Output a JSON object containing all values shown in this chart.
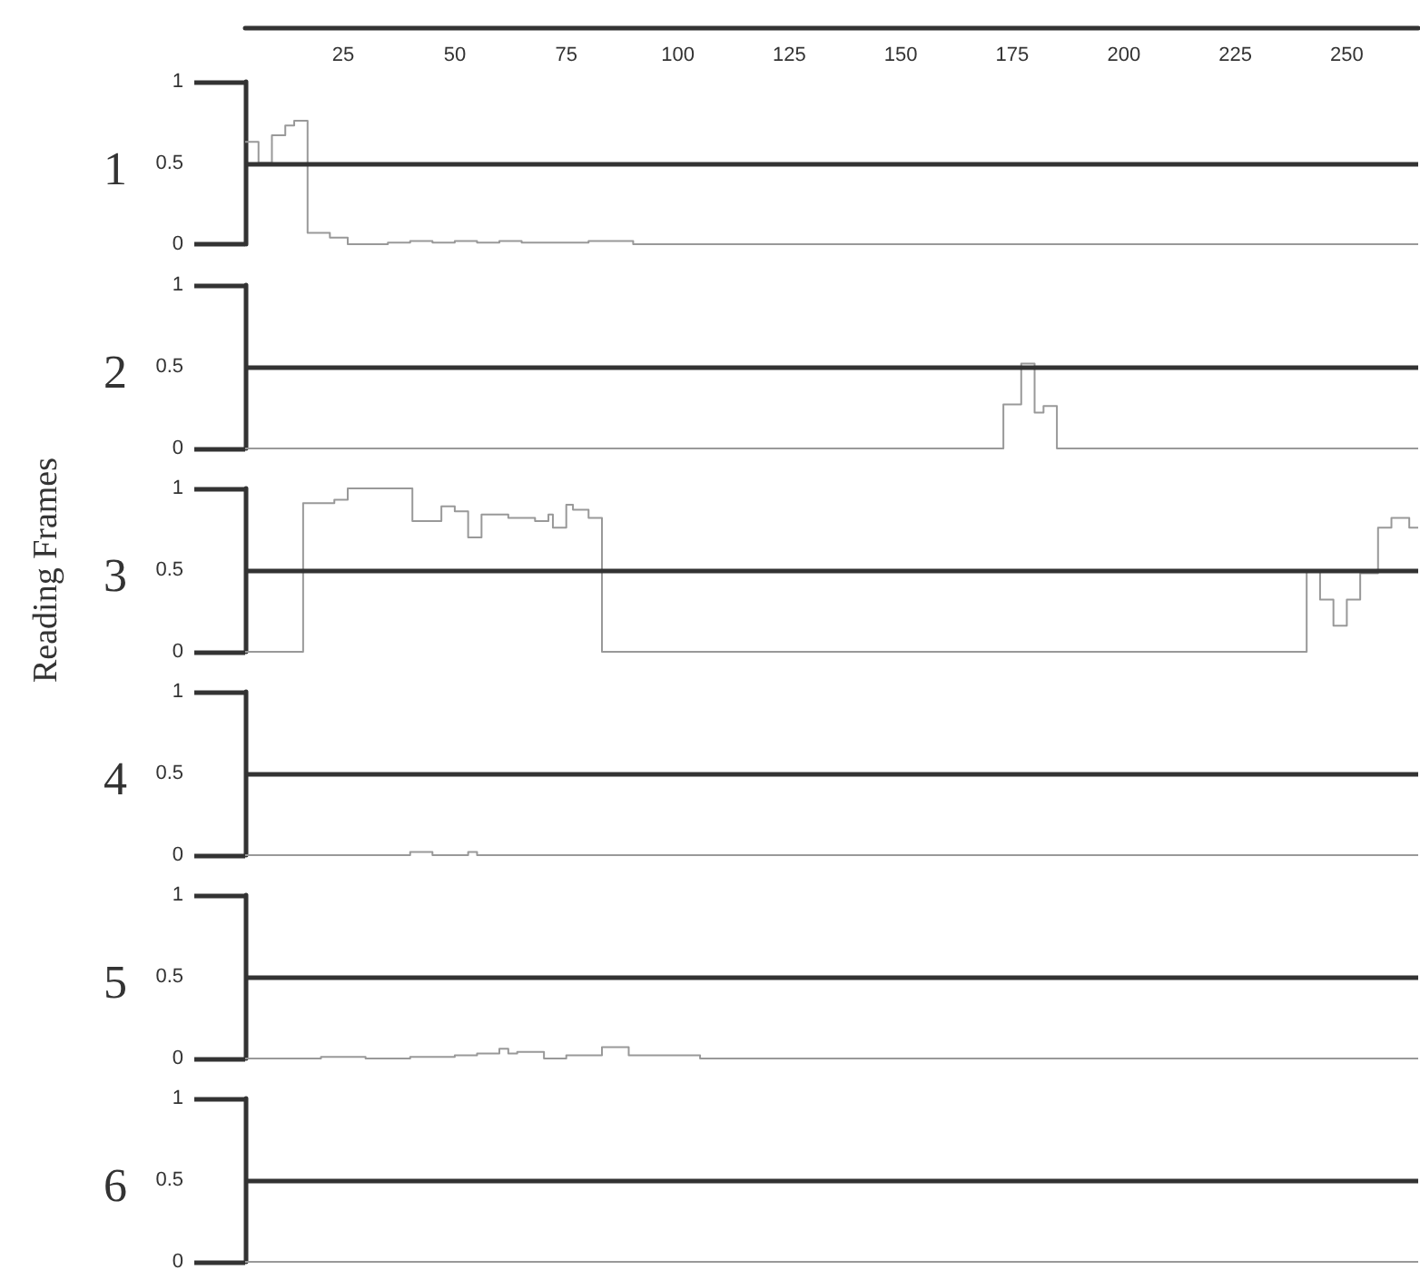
{
  "chart_data": [
    {
      "type": "step",
      "title": "1",
      "xlim": [
        3,
        266
      ],
      "xticks": [
        25,
        50,
        75,
        100,
        125,
        150,
        175,
        200,
        225,
        250
      ],
      "ylim": [
        0,
        1
      ],
      "yticks": [
        0,
        0.5,
        1
      ],
      "marker": "none",
      "ref_lines": [
        {
          "axis": "y",
          "value": 0.5,
          "color": "#333333"
        }
      ],
      "x": [
        3,
        6,
        9,
        12,
        14,
        17,
        22,
        26,
        35,
        40,
        45,
        50,
        55,
        60,
        65,
        70,
        80,
        88,
        90,
        266
      ],
      "values": [
        0.63,
        0.5,
        0.67,
        0.73,
        0.76,
        0.07,
        0.04,
        0,
        0.01,
        0.02,
        0.01,
        0.02,
        0.01,
        0.02,
        0.01,
        0.01,
        0.02,
        0.02,
        0,
        0
      ],
      "color": "#999999"
    },
    {
      "type": "step",
      "title": "2",
      "xlim": [
        3,
        266
      ],
      "ylim": [
        0,
        1
      ],
      "yticks": [
        0,
        0.5,
        1
      ],
      "tick_labels": "y",
      "marker": "none",
      "ref_lines": [
        {
          "axis": "y",
          "value": 0.5,
          "color": "#333333"
        }
      ],
      "x": [
        3,
        173,
        177,
        180,
        182,
        185,
        266
      ],
      "values": [
        0,
        0.27,
        0.52,
        0.22,
        0.26,
        0,
        0
      ],
      "color": "#999999"
    },
    {
      "type": "step",
      "title": "3",
      "ylabel": "Reading Frames",
      "xlim": [
        3,
        266
      ],
      "ylim": [
        0,
        1
      ],
      "yticks": [
        0,
        0.5,
        1
      ],
      "tick_labels": "y",
      "marker": "none",
      "ref_lines": [
        {
          "axis": "y",
          "value": 0.5,
          "color": "#333333"
        }
      ],
      "x": [
        3,
        16,
        23,
        26,
        40.5,
        47,
        50,
        53,
        56,
        62,
        68,
        71,
        72,
        75,
        76.5,
        80,
        83,
        241,
        244,
        247,
        250,
        253,
        257,
        260,
        264,
        266
      ],
      "values": [
        0,
        0.91,
        0.93,
        1,
        0.8,
        0.89,
        0.86,
        0.7,
        0.84,
        0.82,
        0.8,
        0.84,
        0.76,
        0.9,
        0.87,
        0.82,
        0,
        0.5,
        0.32,
        0.16,
        0.32,
        0.48,
        0.76,
        0.82,
        0.76,
        0.76
      ],
      "color": "#999999"
    },
    {
      "type": "step",
      "title": "4",
      "xlim": [
        3,
        266
      ],
      "ylim": [
        0,
        1
      ],
      "yticks": [
        0,
        0.5,
        1
      ],
      "tick_labels": "y",
      "marker": "none",
      "ref_lines": [
        {
          "axis": "y",
          "value": 0.5,
          "color": "#333333"
        }
      ],
      "x": [
        3,
        40,
        45,
        53,
        55,
        266
      ],
      "values": [
        0,
        0.02,
        0,
        0.02,
        0,
        0
      ],
      "color": "#999999"
    },
    {
      "type": "step",
      "title": "5",
      "xlim": [
        3,
        266
      ],
      "ylim": [
        0,
        1
      ],
      "yticks": [
        0,
        0.5,
        1
      ],
      "tick_labels": "y",
      "marker": "none",
      "ref_lines": [
        {
          "axis": "y",
          "value": 0.5,
          "color": "#333333"
        }
      ],
      "x": [
        3,
        20,
        30,
        40,
        50,
        55,
        60,
        62,
        64,
        70,
        75,
        83,
        89,
        105,
        266
      ],
      "values": [
        0,
        0.01,
        0,
        0.01,
        0.02,
        0.03,
        0.06,
        0.03,
        0.04,
        0,
        0.02,
        0.07,
        0.02,
        0,
        0
      ],
      "color": "#999999"
    },
    {
      "type": "step",
      "title": "6",
      "xlim": [
        3,
        266
      ],
      "ylim": [
        0,
        1
      ],
      "yticks": [
        0,
        0.5,
        1
      ],
      "tick_labels": "y",
      "marker": "none",
      "ref_lines": [
        {
          "axis": "y",
          "value": 0.5,
          "color": "#333333"
        }
      ],
      "x": [
        3,
        266
      ],
      "values": [
        0,
        0
      ],
      "color": "#999999"
    }
  ]
}
